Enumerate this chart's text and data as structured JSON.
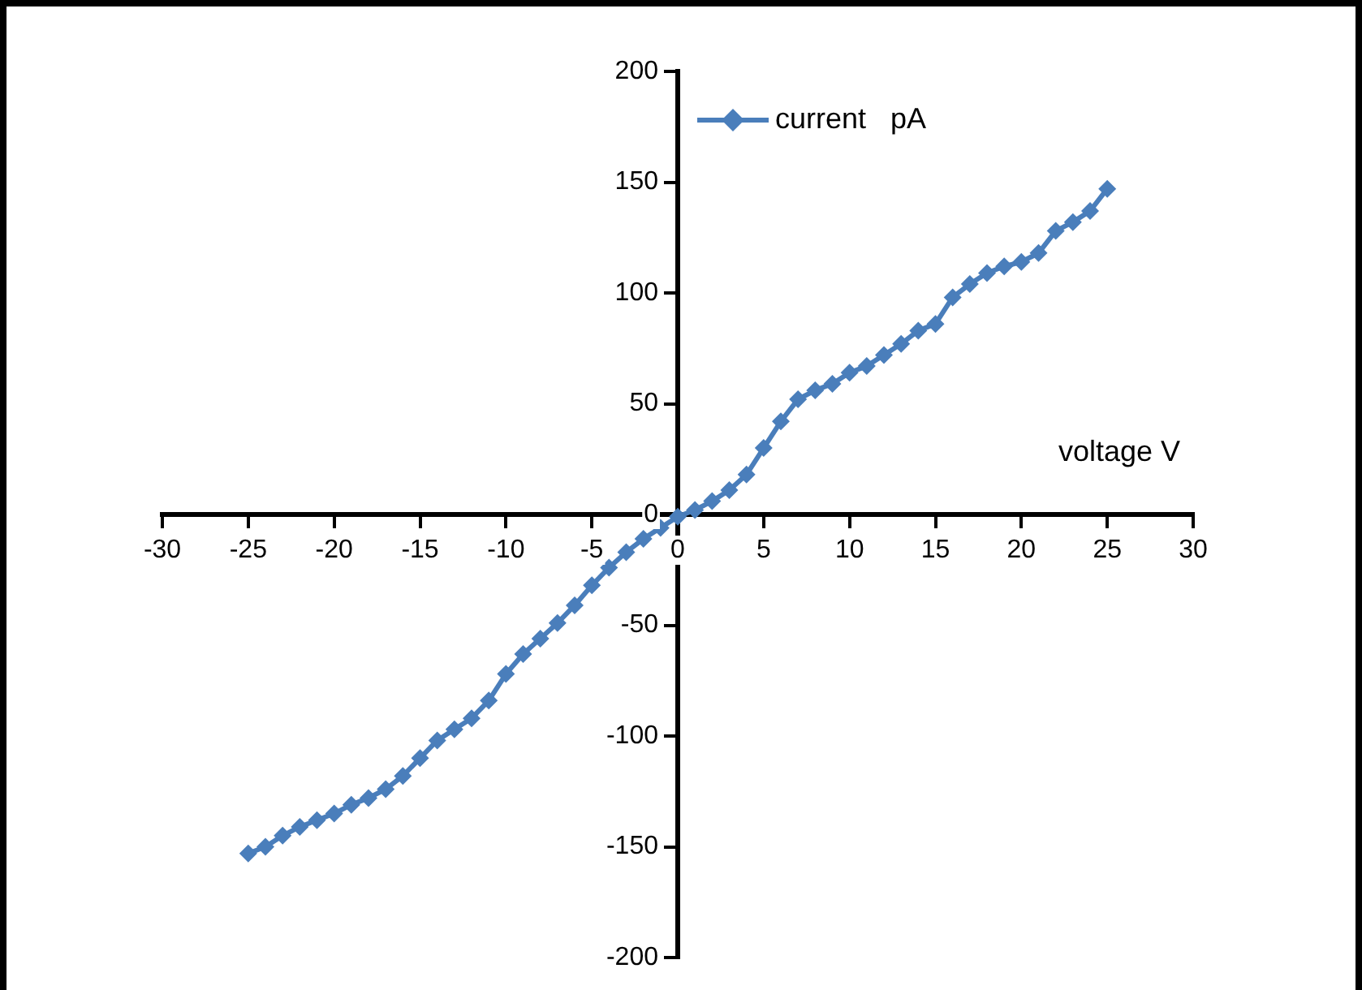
{
  "chart_data": {
    "type": "line",
    "xlabel": "voltage V",
    "x": [
      -25,
      -24,
      -23,
      -22,
      -21,
      -20,
      -19,
      -18,
      -17,
      -16,
      -15,
      -14,
      -13,
      -12,
      -11,
      -10,
      -9,
      -8,
      -7,
      -6,
      -5,
      -4,
      -3,
      -2,
      -1,
      0,
      1,
      2,
      3,
      4,
      5,
      6,
      7,
      8,
      9,
      10,
      11,
      12,
      13,
      14,
      15,
      16,
      17,
      18,
      19,
      20,
      21,
      22,
      23,
      24,
      25
    ],
    "series": [
      {
        "name": "current   pA",
        "color": "#4a7ebb",
        "values": [
          -153,
          -150,
          -145,
          -141,
          -138,
          -135,
          -131,
          -128,
          -124,
          -118,
          -110,
          -102,
          -97,
          -92,
          -84,
          -72,
          -63,
          -56,
          -49,
          -41,
          -32,
          -24,
          -17,
          -11,
          -6,
          -1,
          2,
          6,
          11,
          18,
          30,
          42,
          52,
          56,
          59,
          64,
          67,
          72,
          77,
          83,
          86,
          98,
          104,
          109,
          112,
          114,
          118,
          128,
          132,
          137,
          147
        ]
      }
    ],
    "xlim": [
      -30,
      30
    ],
    "xticks": [
      -30,
      -25,
      -20,
      -15,
      -10,
      -5,
      0,
      5,
      10,
      15,
      20,
      25,
      30
    ],
    "ylim": [
      -200,
      200
    ],
    "yticks": [
      -200,
      -150,
      -100,
      -50,
      0,
      50,
      100,
      150,
      200
    ],
    "grid": false,
    "legend": "top",
    "marker": "diamond",
    "line_style": "solid"
  }
}
